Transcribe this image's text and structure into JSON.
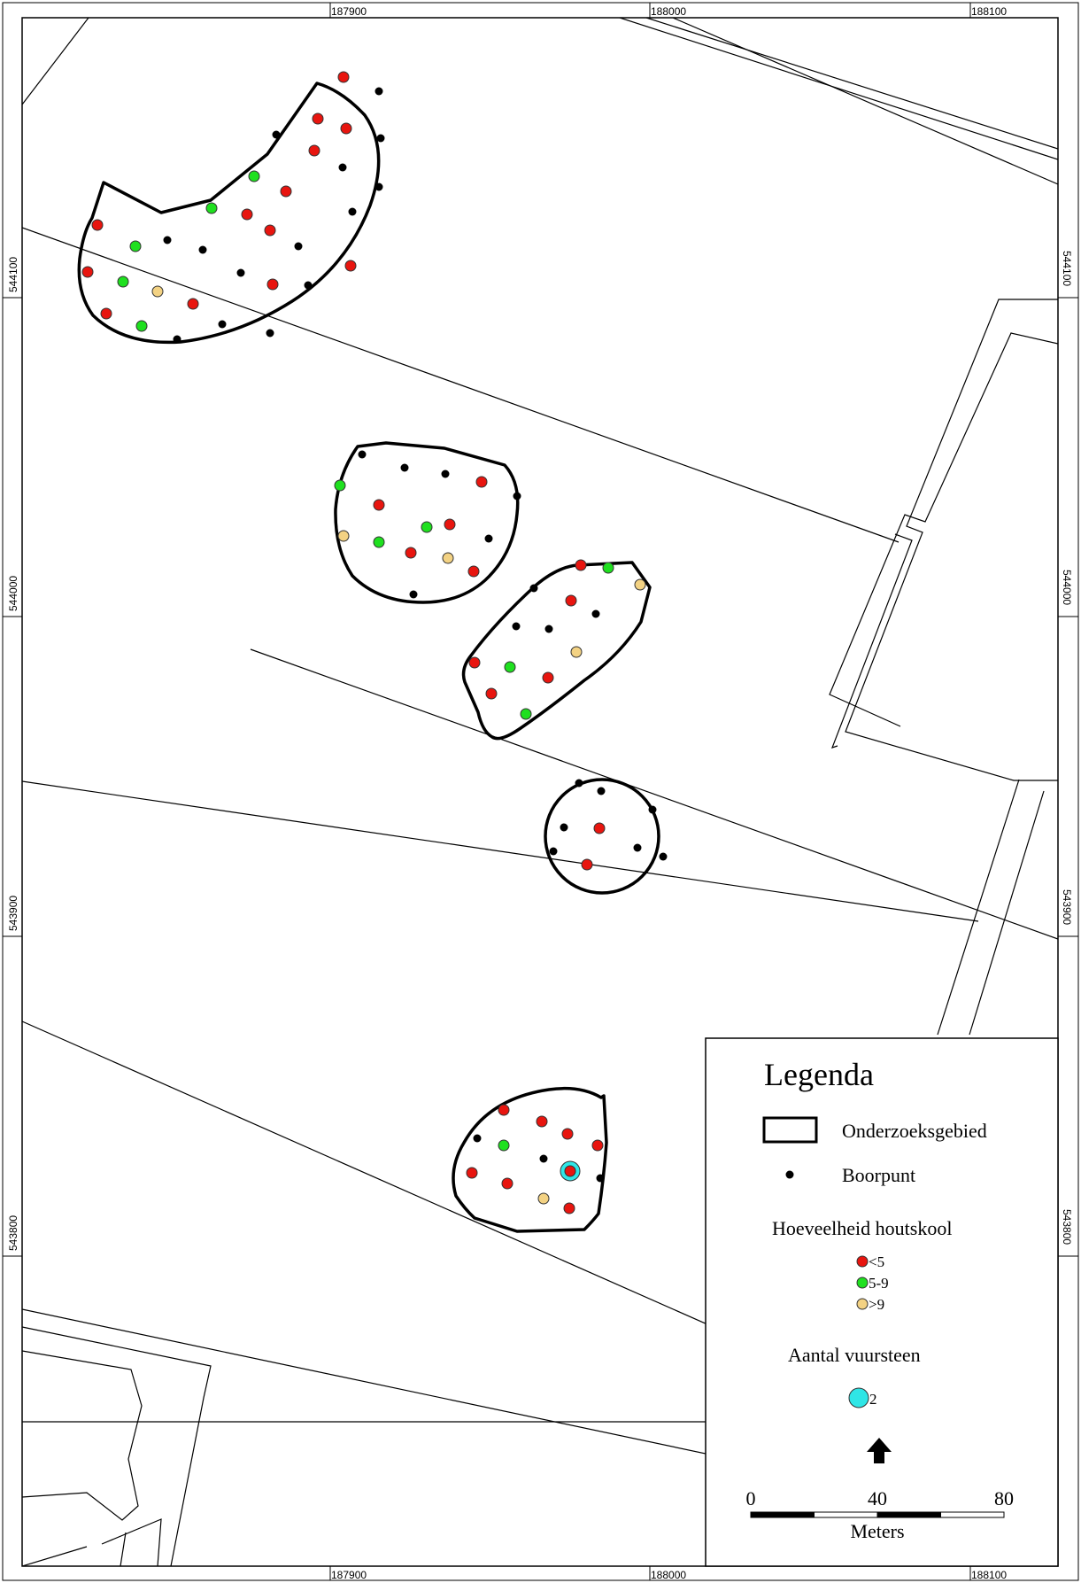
{
  "map": {
    "frame_ticks": {
      "x_labels": [
        "187900",
        "188000",
        "188100"
      ],
      "y_labels": [
        "544100",
        "544000",
        "543900",
        "543800"
      ]
    },
    "colors": {
      "frame": "#000000",
      "parcel_line": "#000000",
      "study_area": "#000000",
      "class_lt5": "#e8150f",
      "class_5_9": "#1fe01f",
      "class_gt9": "#f3d283",
      "boorpunt": "#000000",
      "vuursteen": "#2fe6e6",
      "background": "#ffffff"
    },
    "legend": {
      "title": "Legenda",
      "study_area_label": "Onderzoeksgebied",
      "boorpunt_label": "Boorpunt",
      "charcoal_heading": "Hoeveelheid houtskool",
      "charcoal_classes": [
        {
          "label": "<5",
          "color": "#e8150f"
        },
        {
          "label": "5-9",
          "color": "#1fe01f"
        },
        {
          "label": ">9",
          "color": "#f3d283"
        }
      ],
      "flint_heading": "Aantal vuursteen",
      "flint_label": "2",
      "north_arrow_icon": "north-arrow-icon",
      "scale": {
        "labels": [
          "0",
          "40",
          "80"
        ],
        "unit": "Meters"
      }
    }
  }
}
